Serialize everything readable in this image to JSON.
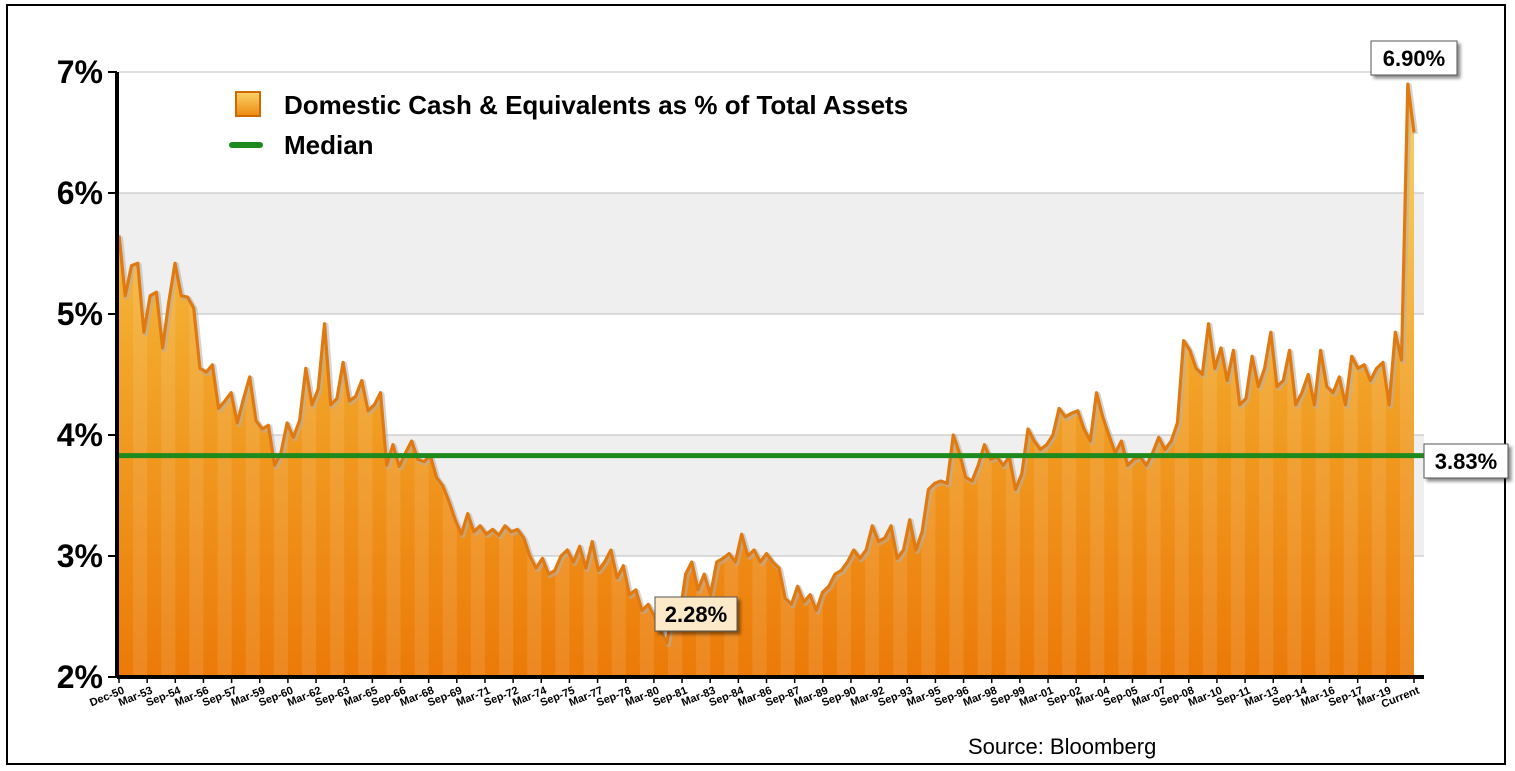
{
  "chart_data": {
    "type": "area",
    "legend": {
      "series_label": "Domestic Cash & Equivalents as % of Total Assets",
      "median_label": "Median",
      "placement": "top-left"
    },
    "source": "Source: Bloomberg",
    "y_ticks": [
      "2%",
      "3%",
      "4%",
      "5%",
      "6%",
      "7%"
    ],
    "ylim": [
      2,
      7
    ],
    "grid": true,
    "colors": {
      "area_top": "#f5c64a",
      "area_bottom": "#ec7a08",
      "line": "#e07a10",
      "median": "#1e8a1e",
      "band": "#efefef"
    },
    "x_ticks": [
      "Dec-50",
      "Mar-53",
      "Sep-54",
      "Mar-56",
      "Sep-57",
      "Mar-59",
      "Sep-60",
      "Mar-62",
      "Sep-63",
      "Mar-65",
      "Sep-66",
      "Mar-68",
      "Sep-69",
      "Mar-71",
      "Sep-72",
      "Mar-74",
      "Sep-75",
      "Mar-77",
      "Sep-78",
      "Mar-80",
      "Sep-81",
      "Mar-83",
      "Sep-84",
      "Mar-86",
      "Sep-87",
      "Mar-89",
      "Sep-90",
      "Mar-92",
      "Sep-93",
      "Mar-95",
      "Sep-96",
      "Mar-98",
      "Sep-99",
      "Mar-01",
      "Sep-02",
      "Mar-04",
      "Sep-05",
      "Mar-07",
      "Sep-08",
      "Mar-10",
      "Sep-11",
      "Mar-13",
      "Sep-14",
      "Mar-16",
      "Sep-17",
      "Mar-19",
      "Current"
    ],
    "median": {
      "value": 3.83,
      "label": "3.83%"
    },
    "callouts": [
      {
        "label": "6.90%",
        "value": 6.9,
        "x_tick": "Current"
      },
      {
        "label": "2.28%",
        "value": 2.28,
        "x_tick": "Mar-83"
      }
    ],
    "series": [
      {
        "name": "Domestic Cash & Equivalents as % of Total Assets",
        "values": [
          5.65,
          5.15,
          5.4,
          5.42,
          4.85,
          5.15,
          5.18,
          4.72,
          5.1,
          5.42,
          5.15,
          5.14,
          5.05,
          4.55,
          4.52,
          4.58,
          4.22,
          4.28,
          4.35,
          4.1,
          4.3,
          4.48,
          4.12,
          4.05,
          4.08,
          3.75,
          3.85,
          4.1,
          3.98,
          4.12,
          4.55,
          4.25,
          4.38,
          4.92,
          4.25,
          4.3,
          4.6,
          4.28,
          4.32,
          4.45,
          4.2,
          4.25,
          4.35,
          3.75,
          3.92,
          3.74,
          3.85,
          3.95,
          3.8,
          3.78,
          3.83,
          3.65,
          3.58,
          3.45,
          3.3,
          3.18,
          3.35,
          3.2,
          3.25,
          3.18,
          3.22,
          3.17,
          3.25,
          3.2,
          3.22,
          3.15,
          3.0,
          2.9,
          2.98,
          2.85,
          2.88,
          3.0,
          3.05,
          2.95,
          3.08,
          2.9,
          3.12,
          2.88,
          2.95,
          3.05,
          2.82,
          2.92,
          2.68,
          2.72,
          2.55,
          2.6,
          2.5,
          2.38,
          2.28,
          2.62,
          2.48,
          2.85,
          2.95,
          2.72,
          2.85,
          2.68,
          2.95,
          2.98,
          3.02,
          2.95,
          3.18,
          3.0,
          3.05,
          2.95,
          3.02,
          2.95,
          2.9,
          2.65,
          2.6,
          2.75,
          2.62,
          2.68,
          2.55,
          2.7,
          2.75,
          2.85,
          2.88,
          2.95,
          3.05,
          2.98,
          3.05,
          3.25,
          3.12,
          3.15,
          3.25,
          2.98,
          3.05,
          3.3,
          3.05,
          3.2,
          3.55,
          3.6,
          3.62,
          3.6,
          4.0,
          3.85,
          3.65,
          3.62,
          3.75,
          3.92,
          3.8,
          3.82,
          3.75,
          3.82,
          3.55,
          3.68,
          4.05,
          3.95,
          3.88,
          3.92,
          4.0,
          4.22,
          4.15,
          4.18,
          4.2,
          4.05,
          3.95,
          4.35,
          4.15,
          4.0,
          3.85,
          3.95,
          3.75,
          3.8,
          3.82,
          3.75,
          3.85,
          3.98,
          3.88,
          3.95,
          4.1,
          4.78,
          4.7,
          4.55,
          4.5,
          4.92,
          4.55,
          4.72,
          4.45,
          4.7,
          4.25,
          4.3,
          4.65,
          4.4,
          4.55,
          4.85,
          4.4,
          4.45,
          4.7,
          4.25,
          4.35,
          4.5,
          4.25,
          4.7,
          4.4,
          4.35,
          4.48,
          4.25,
          4.65,
          4.55,
          4.58,
          4.45,
          4.55,
          4.6,
          4.25,
          4.85,
          4.62,
          6.9,
          6.5
        ]
      }
    ]
  }
}
